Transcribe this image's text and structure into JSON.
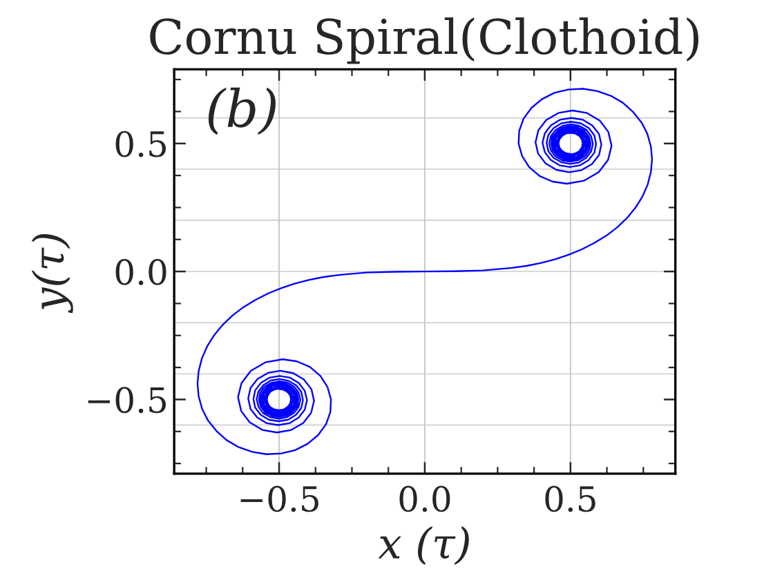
{
  "chart_data": {
    "type": "line",
    "title": "Cornu Spiral(Clothoid)",
    "xlabel": "x (τ)",
    "ylabel": "y(τ)",
    "annotations": [
      "(b)"
    ],
    "series": [
      {
        "color": "#0000ff",
        "x": [
          -0.5,
          -0.484,
          -0.471,
          -0.462,
          -0.459,
          -0.462,
          -0.471,
          -0.484,
          -0.5,
          -0.516,
          -0.53,
          -0.539,
          -0.542,
          -0.539,
          -0.53,
          -0.516,
          -0.5,
          -0.484,
          -0.47,
          -0.46,
          -0.457,
          -0.46,
          -0.47,
          -0.483,
          -0.5,
          -0.517,
          -0.531,
          -0.54,
          -0.544,
          -0.54,
          -0.531,
          -0.517,
          -0.5,
          -0.469,
          -0.455,
          -0.468,
          -0.5,
          -0.532,
          -0.545,
          -0.532,
          -0.5,
          -0.467,
          -0.454,
          -0.467,
          -0.5,
          -0.533,
          -0.547,
          -0.534,
          -0.5,
          -0.466,
          -0.451,
          -0.465,
          -0.5,
          -0.535,
          -0.55,
          -0.535,
          -0.5,
          -0.464,
          -0.449,
          -0.464,
          -0.5,
          -0.537,
          -0.552,
          -0.537,
          -0.5,
          -0.48,
          -0.462,
          -0.45,
          -0.446,
          -0.45,
          -0.462,
          -0.479,
          -0.5,
          -0.521,
          -0.539,
          -0.551,
          -0.555,
          -0.551,
          -0.539,
          -0.521,
          -0.5,
          -0.478,
          -0.46,
          -0.447,
          -0.443,
          -0.447,
          -0.459,
          -0.478,
          -0.5,
          -0.522,
          -0.541,
          -0.554,
          -0.559,
          -0.555,
          -0.542,
          -0.523,
          -0.5,
          -0.477,
          -0.457,
          -0.444,
          -0.439,
          -0.443,
          -0.456,
          -0.476,
          -0.5,
          -0.524,
          -0.545,
          -0.559,
          -0.564,
          -0.559,
          -0.545,
          -0.525,
          -0.5,
          -0.475,
          -0.454,
          -0.439,
          -0.434,
          -0.438,
          -0.453,
          -0.474,
          -0.5,
          -0.526,
          -0.549,
          -0.564,
          -0.569,
          -0.565,
          -0.55,
          -0.527,
          -0.499,
          -0.472,
          -0.448,
          -0.433,
          -0.427,
          -0.433,
          -0.449,
          -0.473,
          -0.501,
          -0.53,
          -0.555,
          -0.571,
          -0.577,
          -0.571,
          -0.554,
          -0.529,
          -0.498,
          -0.468,
          -0.442,
          -0.424,
          -0.418,
          -0.424,
          -0.442,
          -0.469,
          -0.502,
          -0.535,
          -0.563,
          -0.582,
          -0.588,
          -0.582,
          -0.562,
          -0.533,
          -0.498,
          -0.462,
          -0.432,
          -0.412,
          -0.404,
          -0.412,
          -0.433,
          -0.465,
          -0.503,
          -0.542,
          -0.575,
          -0.598,
          -0.606,
          -0.598,
          -0.574,
          -0.538,
          -0.496,
          -0.452,
          -0.415,
          -0.389,
          -0.38,
          -0.39,
          -0.417,
          -0.458,
          -0.507,
          -0.557,
          -0.601,
          -0.63,
          -0.641,
          -0.629,
          -0.597,
          -0.547,
          -0.488,
          -0.439,
          -0.394,
          -0.358,
          -0.334,
          -0.322,
          -0.324,
          -0.339,
          -0.366,
          -0.402,
          -0.445,
          -0.493,
          -0.543,
          -0.592,
          -0.639,
          -0.68,
          -0.715,
          -0.744,
          -0.764,
          -0.776,
          -0.78,
          -0.776,
          -0.765,
          -0.747,
          -0.723,
          -0.694,
          -0.66,
          -0.622,
          -0.581,
          -0.538,
          -0.492,
          -0.446,
          -0.398,
          -0.349,
          -0.299,
          -0.2,
          -0.1,
          0,
          0.1,
          0.2,
          0.299,
          0.349,
          0.398,
          0.446,
          0.492,
          0.538,
          0.581,
          0.622,
          0.66,
          0.694,
          0.723,
          0.747,
          0.765,
          0.776,
          0.78,
          0.776,
          0.764,
          0.744,
          0.715,
          0.68,
          0.639,
          0.592,
          0.543,
          0.493,
          0.445,
          0.402,
          0.366,
          0.339,
          0.324,
          0.322,
          0.334,
          0.358,
          0.394,
          0.439,
          0.488,
          0.547,
          0.597,
          0.629,
          0.641,
          0.63,
          0.601,
          0.557,
          0.507,
          0.458,
          0.417,
          0.39,
          0.38,
          0.389,
          0.415,
          0.452,
          0.496,
          0.538,
          0.574,
          0.598,
          0.606,
          0.598,
          0.575,
          0.542,
          0.503,
          0.465,
          0.433,
          0.412,
          0.404,
          0.412,
          0.432,
          0.462,
          0.498,
          0.533,
          0.562,
          0.582,
          0.588,
          0.582,
          0.563,
          0.535,
          0.502,
          0.469,
          0.442,
          0.424,
          0.418,
          0.424,
          0.442,
          0.468,
          0.498,
          0.529,
          0.554,
          0.571,
          0.577,
          0.571,
          0.555,
          0.53,
          0.501,
          0.473,
          0.449,
          0.433,
          0.427,
          0.433,
          0.448,
          0.472,
          0.499,
          0.527,
          0.55,
          0.565,
          0.569,
          0.564,
          0.549,
          0.526,
          0.5,
          0.474,
          0.453,
          0.438,
          0.434,
          0.439,
          0.454,
          0.475,
          0.5,
          0.525,
          0.545,
          0.559,
          0.564,
          0.559,
          0.545,
          0.524,
          0.5,
          0.476,
          0.456,
          0.443,
          0.439,
          0.444,
          0.457,
          0.477,
          0.5,
          0.523,
          0.542,
          0.555,
          0.559,
          0.554,
          0.541,
          0.522,
          0.5,
          0.478,
          0.459,
          0.447,
          0.443,
          0.447,
          0.46,
          0.478,
          0.5,
          0.521,
          0.539,
          0.551,
          0.555,
          0.551,
          0.539,
          0.521,
          0.5,
          0.479,
          0.462,
          0.45,
          0.446,
          0.45,
          0.462,
          0.48,
          0.5,
          0.537,
          0.552,
          0.537,
          0.5,
          0.464,
          0.449,
          0.464,
          0.5,
          0.535,
          0.55,
          0.535,
          0.5,
          0.465,
          0.451,
          0.466,
          0.5,
          0.534,
          0.547,
          0.533,
          0.5,
          0.467,
          0.454,
          0.467,
          0.5,
          0.532,
          0.545,
          0.532,
          0.5,
          0.468,
          0.455,
          0.469,
          0.5,
          0.517,
          0.531,
          0.54,
          0.544,
          0.54,
          0.531,
          0.517,
          0.5,
          0.483,
          0.47,
          0.46,
          0.457,
          0.46,
          0.47,
          0.484,
          0.5,
          0.516,
          0.53,
          0.539,
          0.542,
          0.539,
          0.53,
          0.516,
          0.5,
          0.484,
          0.471,
          0.462,
          0.459,
          0.462,
          0.471,
          0.484,
          0.5
        ],
        "values": [
          -0.459,
          -0.462,
          -0.471,
          -0.484,
          -0.5,
          -0.516,
          -0.529,
          -0.539,
          -0.542,
          -0.539,
          -0.53,
          -0.516,
          -0.5,
          -0.484,
          -0.47,
          -0.461,
          -0.457,
          -0.461,
          -0.47,
          -0.484,
          -0.5,
          -0.516,
          -0.53,
          -0.54,
          -0.543,
          -0.54,
          -0.531,
          -0.517,
          -0.5,
          -0.483,
          -0.469,
          -0.459,
          -0.456,
          -0.469,
          -0.5,
          -0.532,
          -0.545,
          -0.532,
          -0.5,
          -0.468,
          -0.454,
          -0.467,
          -0.5,
          -0.533,
          -0.547,
          -0.533,
          -0.5,
          -0.466,
          -0.452,
          -0.466,
          -0.5,
          -0.535,
          -0.549,
          -0.535,
          -0.5,
          -0.465,
          -0.45,
          -0.464,
          -0.5,
          -0.536,
          -0.552,
          -0.537,
          -0.5,
          -0.463,
          -0.447,
          -0.451,
          -0.462,
          -0.479,
          -0.5,
          -0.521,
          -0.538,
          -0.55,
          -0.555,
          -0.551,
          -0.539,
          -0.521,
          -0.5,
          -0.479,
          -0.461,
          -0.448,
          -0.444,
          -0.448,
          -0.46,
          -0.478,
          -0.5,
          -0.522,
          -0.541,
          -0.553,
          -0.558,
          -0.554,
          -0.541,
          -0.523,
          -0.5,
          -0.477,
          -0.458,
          -0.445,
          -0.44,
          -0.444,
          -0.457,
          -0.477,
          -0.5,
          -0.524,
          -0.544,
          -0.557,
          -0.562,
          -0.558,
          -0.545,
          -0.524,
          -0.5,
          -0.476,
          -0.455,
          -0.44,
          -0.435,
          -0.44,
          -0.454,
          -0.475,
          -0.5,
          -0.526,
          -0.547,
          -0.562,
          -0.568,
          -0.563,
          -0.549,
          -0.526,
          -0.5,
          -0.473,
          -0.45,
          -0.435,
          -0.429,
          -0.434,
          -0.45,
          -0.473,
          -0.501,
          -0.529,
          -0.553,
          -0.569,
          -0.575,
          -0.569,
          -0.553,
          -0.528,
          -0.499,
          -0.469,
          -0.444,
          -0.426,
          -0.42,
          -0.427,
          -0.444,
          -0.47,
          -0.502,
          -0.533,
          -0.56,
          -0.579,
          -0.585,
          -0.579,
          -0.56,
          -0.532,
          -0.498,
          -0.464,
          -0.435,
          -0.415,
          -0.408,
          -0.415,
          -0.436,
          -0.466,
          -0.503,
          -0.54,
          -0.571,
          -0.593,
          -0.6,
          -0.593,
          -0.57,
          -0.537,
          -0.496,
          -0.455,
          -0.42,
          -0.396,
          -0.388,
          -0.397,
          -0.422,
          -0.46,
          -0.505,
          -0.552,
          -0.592,
          -0.619,
          -0.629,
          -0.619,
          -0.589,
          -0.545,
          -0.491,
          -0.436,
          -0.388,
          -0.355,
          -0.343,
          -0.351,
          -0.373,
          -0.408,
          -0.451,
          -0.499,
          -0.549,
          -0.597,
          -0.639,
          -0.673,
          -0.698,
          -0.711,
          -0.714,
          -0.705,
          -0.686,
          -0.659,
          -0.623,
          -0.582,
          -0.537,
          -0.488,
          -0.438,
          -0.389,
          -0.34,
          -0.293,
          -0.249,
          -0.209,
          -0.172,
          -0.139,
          -0.111,
          -0.086,
          -0.065,
          -0.047,
          -0.033,
          -0.022,
          -0.014,
          -0.004,
          -0.001,
          0,
          0.001,
          0.004,
          0.014,
          0.022,
          0.033,
          0.047,
          0.065,
          0.086,
          0.111,
          0.139,
          0.172,
          0.209,
          0.249,
          0.293,
          0.34,
          0.389,
          0.438,
          0.488,
          0.537,
          0.582,
          0.623,
          0.659,
          0.686,
          0.705,
          0.714,
          0.711,
          0.698,
          0.673,
          0.639,
          0.597,
          0.549,
          0.499,
          0.451,
          0.408,
          0.373,
          0.351,
          0.343,
          0.355,
          0.388,
          0.436,
          0.491,
          0.545,
          0.589,
          0.619,
          0.629,
          0.619,
          0.592,
          0.552,
          0.505,
          0.46,
          0.422,
          0.397,
          0.388,
          0.396,
          0.42,
          0.455,
          0.496,
          0.537,
          0.57,
          0.593,
          0.6,
          0.593,
          0.571,
          0.54,
          0.503,
          0.466,
          0.436,
          0.415,
          0.408,
          0.415,
          0.435,
          0.464,
          0.498,
          0.532,
          0.56,
          0.579,
          0.585,
          0.579,
          0.56,
          0.533,
          0.502,
          0.47,
          0.444,
          0.427,
          0.42,
          0.426,
          0.444,
          0.469,
          0.499,
          0.528,
          0.553,
          0.569,
          0.575,
          0.569,
          0.553,
          0.529,
          0.501,
          0.473,
          0.45,
          0.434,
          0.429,
          0.435,
          0.45,
          0.473,
          0.5,
          0.526,
          0.549,
          0.563,
          0.568,
          0.562,
          0.547,
          0.526,
          0.5,
          0.475,
          0.454,
          0.44,
          0.435,
          0.44,
          0.455,
          0.476,
          0.5,
          0.524,
          0.545,
          0.558,
          0.562,
          0.557,
          0.544,
          0.524,
          0.5,
          0.477,
          0.457,
          0.444,
          0.44,
          0.445,
          0.458,
          0.477,
          0.5,
          0.523,
          0.541,
          0.554,
          0.558,
          0.553,
          0.541,
          0.522,
          0.5,
          0.478,
          0.46,
          0.448,
          0.444,
          0.448,
          0.461,
          0.479,
          0.5,
          0.521,
          0.539,
          0.551,
          0.555,
          0.55,
          0.538,
          0.521,
          0.5,
          0.479,
          0.462,
          0.451,
          0.447,
          0.463,
          0.5,
          0.537,
          0.552,
          0.536,
          0.5,
          0.464,
          0.45,
          0.465,
          0.5,
          0.535,
          0.549,
          0.535,
          0.5,
          0.466,
          0.452,
          0.466,
          0.5,
          0.533,
          0.547,
          0.533,
          0.5,
          0.467,
          0.454,
          0.468,
          0.5,
          0.532,
          0.545,
          0.532,
          0.5,
          0.469,
          0.456,
          0.459,
          0.469,
          0.483,
          0.5,
          0.517,
          0.531,
          0.54,
          0.543,
          0.54,
          0.53,
          0.516,
          0.5,
          0.484,
          0.47,
          0.461,
          0.457,
          0.461,
          0.47,
          0.484,
          0.5,
          0.516,
          0.53,
          0.539,
          0.542,
          0.539,
          0.529,
          0.516,
          0.5,
          0.484,
          0.471,
          0.462,
          0.459
        ]
      }
    ],
    "xlim": [
      -0.86,
      0.86
    ],
    "ylim": [
      -0.79,
      0.79
    ],
    "xticks": [
      {
        "value": -0.75,
        "label": null
      },
      {
        "value": -0.625,
        "label": null
      },
      {
        "value": -0.5,
        "label": "−0.5"
      },
      {
        "value": -0.375,
        "label": null
      },
      {
        "value": -0.25,
        "label": null
      },
      {
        "value": -0.125,
        "label": null
      },
      {
        "value": 0,
        "label": "0.0"
      },
      {
        "value": 0.125,
        "label": null
      },
      {
        "value": 0.25,
        "label": null
      },
      {
        "value": 0.375,
        "label": null
      },
      0.5,
      {
        "value": 0.625,
        "label": null
      },
      {
        "value": 0.75,
        "label": null
      }
    ],
    "yticks": [
      {
        "value": -0.75,
        "label": null
      },
      {
        "value": -0.625,
        "label": null
      },
      {
        "value": -0.5,
        "label": "−0.5"
      },
      {
        "value": -0.375,
        "label": null
      },
      {
        "value": -0.25,
        "label": null
      },
      {
        "value": -0.125,
        "label": null
      },
      {
        "value": 0,
        "label": "0.0"
      },
      {
        "value": 0.125,
        "label": null
      },
      {
        "value": 0.25,
        "label": null
      },
      {
        "value": 0.375,
        "label": null
      },
      0.5,
      {
        "value": 0.625,
        "label": null
      },
      {
        "value": 0.75,
        "label": null
      }
    ],
    "grid": "x",
    "ref_lines": [
      {
        "axis": "y",
        "value": -0.6,
        "color": "#d4d4d4"
      },
      {
        "axis": "y",
        "value": -0.4,
        "color": "#d4d4d4"
      },
      {
        "axis": "y",
        "value": -0.2,
        "color": "#d4d4d4"
      },
      {
        "axis": "y",
        "value": 0,
        "color": "#d4d4d4"
      },
      {
        "axis": "y",
        "value": 0.2,
        "color": "#d4d4d4"
      },
      {
        "axis": "y",
        "value": 0.4,
        "color": "#d4d4d4"
      },
      {
        "axis": "y",
        "value": 0.6,
        "color": "#d4d4d4"
      }
    ]
  }
}
